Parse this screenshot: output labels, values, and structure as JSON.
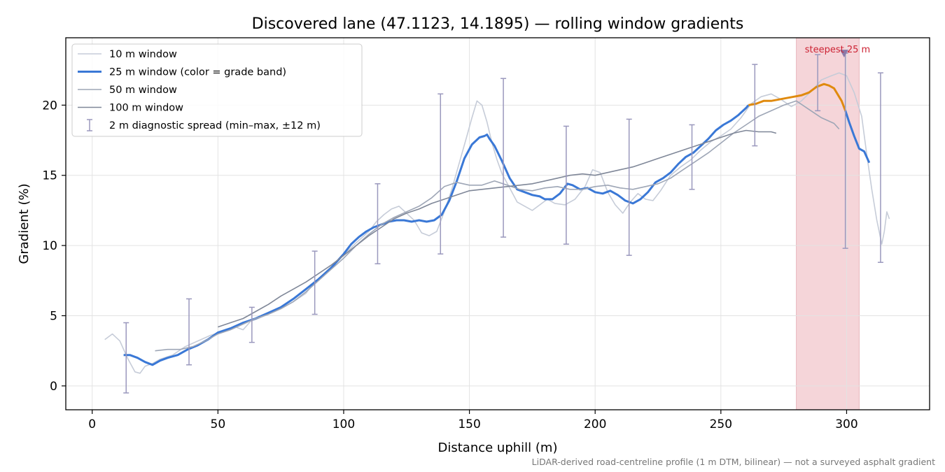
{
  "chart_data": {
    "type": "line",
    "title": "Discovered lane (47.1123, 14.1895) — rolling window gradients",
    "xlabel": "Distance uphill (m)",
    "ylabel": "Gradient (%)",
    "footnote": "LiDAR-derived road-centreline profile (1 m DTM, bilinear) — not a surveyed asphalt gradient",
    "xlim": [
      -10.5,
      333
    ],
    "ylim": [
      -1.7,
      24.8
    ],
    "xticks": [
      0,
      50,
      100,
      150,
      200,
      250,
      300
    ],
    "yticks": [
      0,
      5,
      10,
      15,
      20
    ],
    "grid": true,
    "legend_position": "top-left",
    "highlight": {
      "x_from": 280,
      "x_to": 305,
      "color": "#f5d5d9",
      "label": "steepest 25 m",
      "marker_x": 299,
      "marker_y": 23.7
    },
    "series": [
      {
        "name": "10 m window",
        "color": "#c6ccd8",
        "x": [
          5,
          8,
          11,
          14,
          17,
          19,
          21,
          24,
          27,
          32,
          37,
          42,
          47,
          52,
          57,
          60,
          63,
          66,
          70,
          75,
          80,
          85,
          88,
          91,
          95,
          100,
          105,
          110,
          113,
          116,
          119,
          122,
          125,
          128,
          131,
          134,
          137,
          140,
          143,
          146,
          149,
          151,
          153,
          155,
          157,
          159,
          161,
          163,
          166,
          169,
          172,
          175,
          178,
          181,
          184,
          188,
          192,
          196,
          199,
          202,
          205,
          208,
          211,
          214,
          217,
          220,
          223,
          226,
          230,
          234,
          238,
          242,
          246,
          250,
          254,
          258,
          262,
          266,
          270,
          274,
          278,
          282,
          286,
          290,
          294,
          297,
          300,
          303,
          306,
          308,
          310,
          312,
          314,
          315,
          316,
          317
        ],
        "y": [
          3.3,
          3.7,
          3.2,
          2.0,
          1.0,
          0.9,
          1.4,
          1.6,
          1.9,
          2.2,
          2.8,
          3.2,
          3.6,
          3.9,
          4.2,
          4.0,
          4.6,
          4.8,
          5.1,
          5.5,
          6.0,
          6.6,
          7.3,
          7.8,
          8.5,
          9.3,
          10.2,
          11.0,
          11.7,
          12.2,
          12.6,
          12.8,
          12.3,
          11.8,
          10.9,
          10.7,
          11.0,
          12.4,
          14.0,
          15.9,
          17.8,
          19.1,
          20.3,
          20.0,
          18.8,
          17.3,
          16.1,
          15.1,
          14.1,
          13.1,
          12.8,
          12.5,
          12.9,
          13.3,
          13.0,
          12.9,
          13.3,
          14.2,
          15.4,
          15.2,
          13.8,
          12.9,
          12.3,
          13.1,
          13.7,
          13.3,
          13.2,
          13.9,
          15.0,
          15.6,
          16.1,
          16.8,
          17.4,
          17.8,
          18.3,
          19.1,
          20.1,
          20.6,
          20.8,
          20.4,
          19.9,
          20.3,
          21.0,
          21.8,
          22.1,
          22.3,
          22.1,
          20.9,
          19.2,
          16.5,
          14.0,
          11.8,
          10.1,
          11.0,
          12.4,
          11.9
        ]
      },
      {
        "name": "25 m window (color = grade band)",
        "color": "#3a78d6",
        "band_color": "#e08a0e",
        "band_from_y": 20,
        "x": [
          12.5,
          15,
          18,
          21,
          24,
          27,
          30,
          34,
          38,
          42,
          46,
          50,
          55,
          60,
          65,
          70,
          75,
          80,
          85,
          90,
          95,
          100,
          103,
          106,
          109,
          112,
          115,
          118,
          121,
          124,
          127,
          130,
          133,
          136,
          139,
          142,
          145,
          148,
          151,
          154,
          156,
          157,
          158,
          160,
          163,
          166,
          169,
          172,
          175,
          178,
          180,
          183,
          186,
          189,
          191,
          194,
          197,
          200,
          203,
          206,
          209,
          212,
          215,
          218,
          221,
          224,
          227,
          230,
          233,
          236,
          239,
          242,
          245,
          248,
          251,
          254,
          257,
          260,
          261,
          264,
          267,
          270,
          273,
          276,
          279,
          282,
          285,
          288,
          291,
          293,
          295,
          297,
          298,
          299.5,
          301,
          303,
          305,
          307,
          309
        ],
        "y": [
          2.2,
          2.2,
          2.0,
          1.7,
          1.5,
          1.8,
          2.0,
          2.2,
          2.6,
          2.9,
          3.3,
          3.8,
          4.1,
          4.5,
          4.8,
          5.2,
          5.6,
          6.2,
          6.9,
          7.6,
          8.4,
          9.4,
          10.1,
          10.6,
          11.0,
          11.3,
          11.5,
          11.7,
          11.8,
          11.8,
          11.7,
          11.8,
          11.7,
          11.8,
          12.2,
          13.2,
          14.6,
          16.2,
          17.2,
          17.7,
          17.8,
          17.9,
          17.6,
          17.1,
          16.0,
          14.8,
          14.0,
          13.8,
          13.6,
          13.5,
          13.3,
          13.3,
          13.7,
          14.4,
          14.3,
          14.0,
          14.1,
          13.8,
          13.7,
          13.9,
          13.6,
          13.2,
          13.0,
          13.3,
          13.8,
          14.5,
          14.8,
          15.2,
          15.8,
          16.3,
          16.6,
          17.1,
          17.6,
          18.2,
          18.6,
          18.9,
          19.3,
          19.8,
          20.0,
          20.1,
          20.3,
          20.3,
          20.4,
          20.5,
          20.6,
          20.7,
          20.9,
          21.3,
          21.5,
          21.4,
          21.2,
          20.6,
          20.3,
          19.6,
          18.8,
          17.8,
          16.9,
          16.7,
          15.9
        ]
      },
      {
        "name": "50 m window",
        "color": "#9ea6b6",
        "x": [
          25,
          30,
          35,
          40,
          45,
          50,
          55,
          60,
          65,
          70,
          75,
          80,
          85,
          90,
          95,
          100,
          105,
          110,
          115,
          120,
          125,
          130,
          135,
          140,
          145,
          150,
          155,
          160,
          165,
          170,
          175,
          180,
          185,
          190,
          195,
          200,
          205,
          210,
          215,
          220,
          225,
          230,
          235,
          240,
          245,
          250,
          255,
          260,
          265,
          270,
          275,
          280,
          285,
          290,
          295,
          297
        ],
        "y": [
          2.5,
          2.6,
          2.6,
          2.8,
          3.2,
          3.7,
          4.0,
          4.4,
          4.8,
          5.1,
          5.5,
          6.0,
          6.7,
          7.5,
          8.3,
          9.1,
          10.0,
          10.8,
          11.5,
          12.0,
          12.4,
          12.8,
          13.4,
          14.2,
          14.5,
          14.3,
          14.3,
          14.6,
          14.3,
          14.0,
          13.9,
          14.1,
          14.2,
          14.0,
          14.0,
          14.2,
          14.3,
          14.1,
          14.0,
          14.2,
          14.4,
          14.8,
          15.4,
          16.0,
          16.6,
          17.3,
          18.0,
          18.6,
          19.2,
          19.6,
          20.0,
          20.3,
          19.7,
          19.1,
          18.7,
          18.3
        ]
      },
      {
        "name": "100 m window",
        "color": "#7f8798",
        "x": [
          50,
          55,
          60,
          65,
          70,
          75,
          80,
          85,
          90,
          95,
          100,
          105,
          110,
          115,
          120,
          125,
          130,
          135,
          140,
          145,
          150,
          155,
          160,
          165,
          170,
          175,
          180,
          185,
          190,
          195,
          200,
          205,
          210,
          215,
          220,
          225,
          230,
          235,
          240,
          245,
          250,
          255,
          260,
          265,
          270,
          272
        ],
        "y": [
          4.2,
          4.5,
          4.8,
          5.3,
          5.8,
          6.4,
          6.9,
          7.4,
          8.0,
          8.6,
          9.3,
          10.0,
          10.7,
          11.3,
          11.9,
          12.3,
          12.6,
          13.0,
          13.3,
          13.6,
          13.9,
          14.0,
          14.1,
          14.2,
          14.3,
          14.4,
          14.6,
          14.8,
          15.0,
          15.1,
          15.0,
          15.2,
          15.4,
          15.6,
          15.9,
          16.2,
          16.5,
          16.8,
          17.1,
          17.4,
          17.7,
          18.0,
          18.2,
          18.1,
          18.1,
          18.0
        ]
      }
    ],
    "error_bars": {
      "name": "2 m diagnostic spread (min–max, ±12 m)",
      "color": "#9a98bd",
      "points": [
        {
          "x": 13.5,
          "min": -0.5,
          "max": 4.5
        },
        {
          "x": 38.5,
          "min": 1.5,
          "max": 6.2
        },
        {
          "x": 63.5,
          "min": 3.1,
          "max": 5.6
        },
        {
          "x": 88.5,
          "min": 5.1,
          "max": 9.6
        },
        {
          "x": 113.5,
          "min": 8.7,
          "max": 14.4
        },
        {
          "x": 138.5,
          "min": 9.4,
          "max": 20.8
        },
        {
          "x": 163.5,
          "min": 10.6,
          "max": 21.9
        },
        {
          "x": 188.5,
          "min": 10.1,
          "max": 18.5
        },
        {
          "x": 213.5,
          "min": 9.3,
          "max": 19.0
        },
        {
          "x": 238.5,
          "min": 14.0,
          "max": 18.6
        },
        {
          "x": 263.5,
          "min": 17.1,
          "max": 22.9
        },
        {
          "x": 288.5,
          "min": 19.6,
          "max": 23.6
        },
        {
          "x": 299.5,
          "min": 9.8,
          "max": 23.7
        },
        {
          "x": 313.5,
          "min": 8.8,
          "max": 22.3
        }
      ]
    }
  }
}
